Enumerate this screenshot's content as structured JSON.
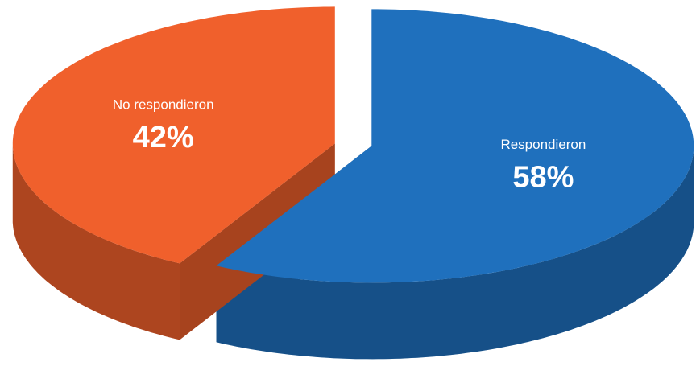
{
  "chart_data": {
    "type": "pie",
    "categories": [
      "Respondieron",
      "No respondieron"
    ],
    "values": [
      58,
      42
    ],
    "value_labels": [
      "58%",
      "42%"
    ],
    "colors": [
      "#1f70bd",
      "#f0602c"
    ]
  }
}
